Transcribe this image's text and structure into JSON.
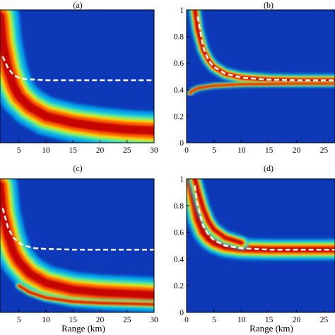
{
  "chart_data": [
    {
      "type": "heatmap",
      "panel_label": "(a)",
      "xlabel": "",
      "ylabel": "",
      "x_ticks": [
        5,
        10,
        15,
        20,
        25,
        30
      ],
      "y_ticks": [],
      "xlim": [
        1.5,
        30
      ],
      "ylim": [
        0,
        1
      ],
      "colormap": "jet",
      "background_color": "#0d39b8",
      "bands": [
        {
          "x": [
            1.5,
            2,
            3,
            4,
            5,
            7,
            10,
            15,
            20,
            25,
            30
          ],
          "y": [
            0.95,
            0.75,
            0.55,
            0.43,
            0.35,
            0.27,
            0.2,
            0.15,
            0.12,
            0.1,
            0.09
          ],
          "width": 0.11
        }
      ],
      "dashed_curve": {
        "x": [
          2,
          3,
          4,
          5,
          6,
          8,
          10,
          15,
          20,
          25,
          30
        ],
        "y": [
          0.65,
          0.56,
          0.51,
          0.49,
          0.48,
          0.475,
          0.47,
          0.47,
          0.47,
          0.47,
          0.47
        ]
      }
    },
    {
      "type": "heatmap",
      "panel_label": "(b)",
      "xlabel": "",
      "ylabel": "",
      "x_ticks": [
        0,
        5,
        10,
        15,
        20,
        25
      ],
      "y_ticks": [
        0,
        0.2,
        0.4,
        0.6,
        0.8,
        1
      ],
      "xlim": [
        0,
        27
      ],
      "ylim": [
        0,
        1
      ],
      "colormap": "jet",
      "background_color": "#0d39b8",
      "bands": [
        {
          "x": [
            1.5,
            2,
            3,
            4,
            5,
            7,
            10,
            15,
            20,
            25,
            27
          ],
          "y": [
            1.0,
            0.85,
            0.7,
            0.62,
            0.57,
            0.52,
            0.49,
            0.475,
            0.47,
            0.47,
            0.47
          ],
          "width": 0.035
        },
        {
          "x": [
            0.6,
            1,
            2,
            5,
            10,
            20,
            27
          ],
          "y": [
            0.37,
            0.39,
            0.41,
            0.43,
            0.44,
            0.445,
            0.445
          ],
          "width": 0.015
        }
      ],
      "dashed_curve": {
        "x": [
          2,
          3,
          4,
          5,
          7,
          10,
          15,
          20,
          25,
          27
        ],
        "y": [
          0.95,
          0.72,
          0.62,
          0.57,
          0.52,
          0.49,
          0.475,
          0.47,
          0.47,
          0.47
        ]
      }
    },
    {
      "type": "heatmap",
      "panel_label": "(c)",
      "xlabel": "Range (km)",
      "ylabel": "",
      "x_ticks": [
        5,
        10,
        15,
        20,
        25,
        30
      ],
      "y_ticks": [],
      "xlim": [
        1.5,
        30
      ],
      "ylim": [
        0,
        1
      ],
      "colormap": "jet",
      "background_color": "#0d39b8",
      "bands": [
        {
          "x": [
            1.5,
            2,
            3,
            4,
            5,
            7,
            10,
            15,
            20,
            25,
            30
          ],
          "y": [
            0.95,
            0.75,
            0.57,
            0.45,
            0.38,
            0.29,
            0.22,
            0.17,
            0.15,
            0.14,
            0.13
          ],
          "width": 0.1
        },
        {
          "x": [
            5,
            7,
            10,
            15,
            20,
            25,
            30
          ],
          "y": [
            0.2,
            0.15,
            0.11,
            0.08,
            0.07,
            0.065,
            0.06
          ],
          "width": 0.02
        }
      ],
      "dashed_curve": {
        "x": [
          2,
          3,
          4,
          5,
          6,
          8,
          10,
          15,
          20,
          25,
          30
        ],
        "y": [
          0.78,
          0.63,
          0.56,
          0.52,
          0.5,
          0.48,
          0.475,
          0.47,
          0.47,
          0.47,
          0.47
        ]
      }
    },
    {
      "type": "heatmap",
      "panel_label": "(d)",
      "xlabel": "Range (km)",
      "ylabel": "",
      "x_ticks": [
        0,
        5,
        10,
        15,
        20,
        25
      ],
      "y_ticks": [
        0,
        0.2,
        0.4,
        0.6,
        0.8,
        1
      ],
      "xlim": [
        0,
        27
      ],
      "ylim": [
        0,
        1
      ],
      "colormap": "jet",
      "background_color": "#0d39b8",
      "bands": [
        {
          "x": [
            0.5,
            1,
            2,
            3,
            4,
            5,
            7,
            10,
            15,
            20,
            25,
            27
          ],
          "y": [
            1.0,
            0.9,
            0.7,
            0.6,
            0.55,
            0.52,
            0.49,
            0.475,
            0.47,
            0.47,
            0.47,
            0.47
          ],
          "width": 0.06
        },
        {
          "x": [
            1.5,
            2,
            3,
            4,
            5,
            7,
            10
          ],
          "y": [
            1.0,
            0.92,
            0.78,
            0.68,
            0.62,
            0.56,
            0.52
          ],
          "width": 0.04
        }
      ],
      "dashed_curve": {
        "x": [
          1.5,
          2,
          3,
          4,
          5,
          7,
          10,
          15,
          20,
          25,
          27
        ],
        "y": [
          0.95,
          0.8,
          0.65,
          0.58,
          0.54,
          0.5,
          0.48,
          0.47,
          0.47,
          0.47,
          0.47
        ]
      }
    }
  ]
}
